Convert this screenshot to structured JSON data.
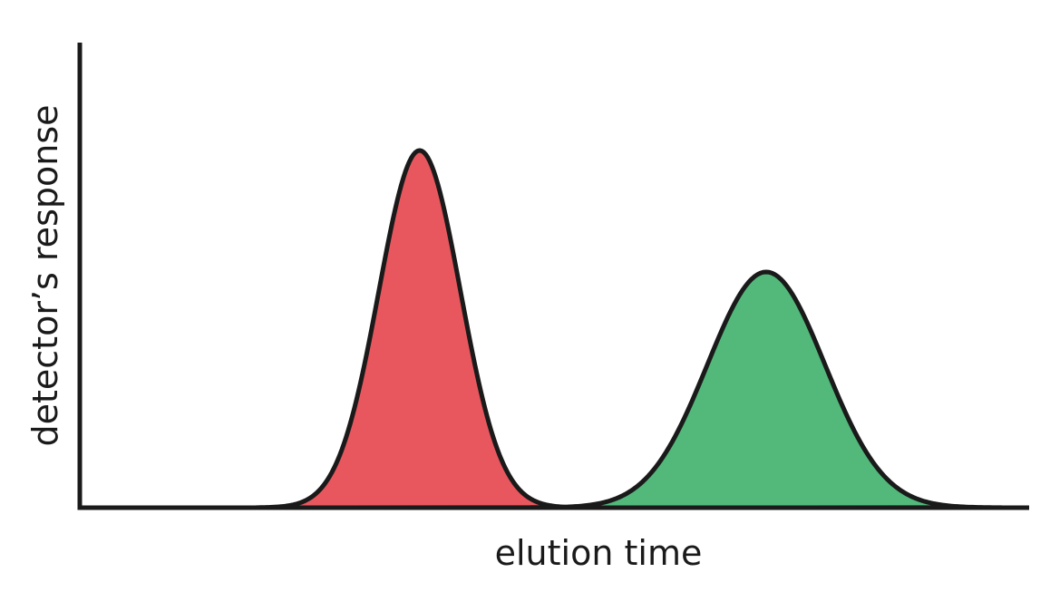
{
  "chart_data": {
    "type": "area",
    "title": "",
    "xlabel": "elution time",
    "ylabel": "detector’s response",
    "xlim": [
      0,
      100
    ],
    "ylim": [
      0,
      100
    ],
    "grid": false,
    "legend": "none",
    "ticks": false,
    "series": [
      {
        "center": 35.8,
        "height": 100,
        "width": 4.3,
        "color": "#e8575e"
      },
      {
        "center": 72.3,
        "height": 66,
        "width": 6.2,
        "color": "#52b97b"
      }
    ]
  }
}
